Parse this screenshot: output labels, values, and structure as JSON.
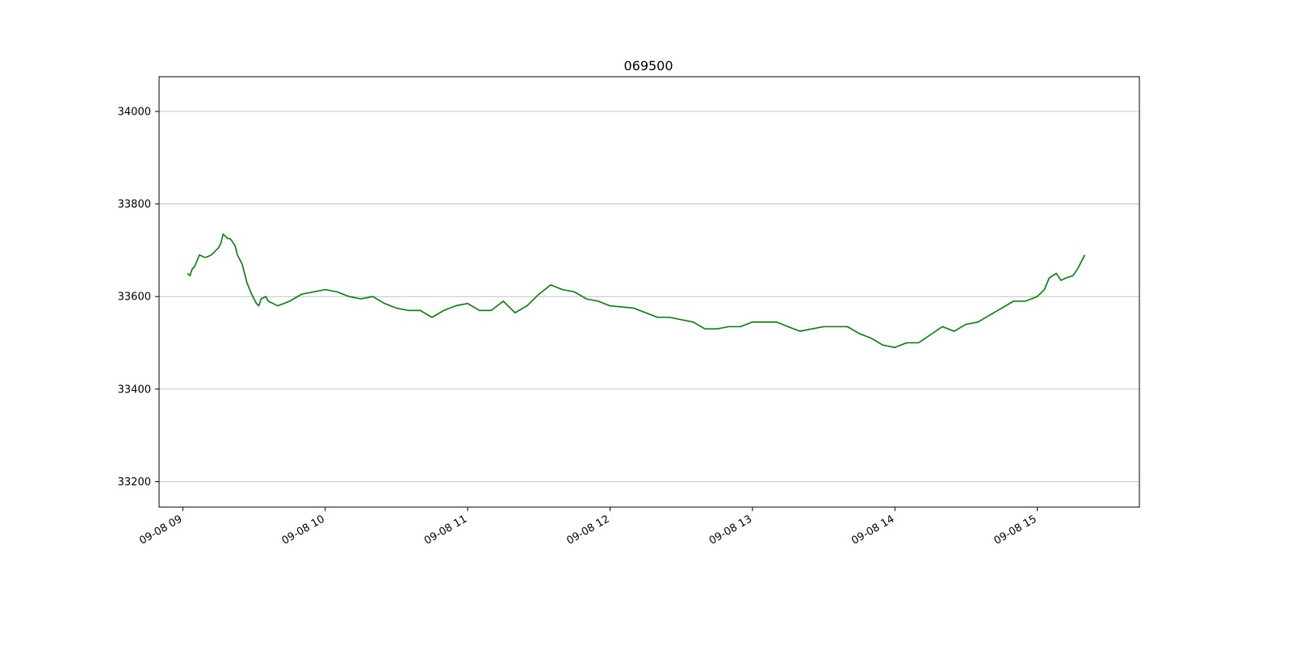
{
  "chart_data": {
    "type": "line",
    "title": "069500",
    "xlabel": "",
    "ylabel": "",
    "x_axis_type": "datetime",
    "xlim": [
      "2023-09-08 08:50",
      "2023-09-08 15:43"
    ],
    "ylim": [
      33145,
      34075
    ],
    "grid": "horizontal",
    "legend": "none",
    "line_color": "#008000",
    "x_ticks": [
      {
        "value": "2023-09-08 09:00",
        "label": "09-08 09"
      },
      {
        "value": "2023-09-08 10:00",
        "label": "09-08 10"
      },
      {
        "value": "2023-09-08 11:00",
        "label": "09-08 11"
      },
      {
        "value": "2023-09-08 12:00",
        "label": "09-08 12"
      },
      {
        "value": "2023-09-08 13:00",
        "label": "09-08 13"
      },
      {
        "value": "2023-09-08 14:00",
        "label": "09-08 14"
      },
      {
        "value": "2023-09-08 15:00",
        "label": "09-08 15"
      }
    ],
    "y_ticks": [
      {
        "value": 33200,
        "label": "33200"
      },
      {
        "value": 33400,
        "label": "33400"
      },
      {
        "value": 33600,
        "label": "33600"
      },
      {
        "value": 33800,
        "label": "33800"
      },
      {
        "value": 34000,
        "label": "34000"
      }
    ],
    "series": [
      {
        "x": [
          "09:02",
          "09:03",
          "09:04",
          "09:05",
          "09:07",
          "09:09",
          "09:10",
          "09:12",
          "09:14",
          "09:15",
          "09:16",
          "09:17",
          "09:18",
          "09:19",
          "09:20",
          "09:22",
          "09:23",
          "09:25",
          "09:27",
          "09:29",
          "09:30",
          "09:31",
          "09:32",
          "09:33",
          "09:35",
          "09:36",
          "09:38",
          "09:40",
          "09:45",
          "09:50",
          "09:55",
          "10:00",
          "10:05",
          "10:10",
          "10:15",
          "10:20",
          "10:25",
          "10:30",
          "10:35",
          "10:40",
          "10:45",
          "10:50",
          "10:55",
          "11:00",
          "11:05",
          "11:10",
          "11:15",
          "11:20",
          "11:25",
          "11:30",
          "11:35",
          "11:40",
          "11:45",
          "11:50",
          "11:55",
          "12:00",
          "12:10",
          "12:20",
          "12:25",
          "12:30",
          "12:35",
          "12:40",
          "12:45",
          "12:50",
          "12:55",
          "13:00",
          "13:10",
          "13:20",
          "13:30",
          "13:40",
          "13:45",
          "13:50",
          "13:55",
          "14:00",
          "14:05",
          "14:10",
          "14:20",
          "14:25",
          "14:30",
          "14:35",
          "14:40",
          "14:45",
          "14:50",
          "14:55",
          "15:00",
          "15:03",
          "15:05",
          "15:08",
          "15:10",
          "15:12",
          "15:15",
          "15:17",
          "15:20"
        ],
        "values": [
          33650,
          33645,
          33660,
          33665,
          33690,
          33685,
          33685,
          33690,
          33700,
          33705,
          33715,
          33735,
          33730,
          33725,
          33725,
          33710,
          33690,
          33670,
          33630,
          33605,
          33595,
          33585,
          33580,
          33595,
          33600,
          33590,
          33585,
          33580,
          33590,
          33605,
          33610,
          33615,
          33610,
          33600,
          33595,
          33600,
          33585,
          33575,
          33570,
          33570,
          33555,
          33570,
          33580,
          33585,
          33570,
          33570,
          33590,
          33565,
          33580,
          33605,
          33625,
          33615,
          33610,
          33595,
          33590,
          33580,
          33575,
          33555,
          33555,
          33550,
          33545,
          33530,
          33530,
          33535,
          33535,
          33545,
          33545,
          33525,
          33535,
          33535,
          33520,
          33510,
          33495,
          33490,
          33500,
          33500,
          33535,
          33525,
          33540,
          33545,
          33560,
          33575,
          33590,
          33590,
          33600,
          33615,
          33640,
          33650,
          33635,
          33640,
          33645,
          33660,
          33690
        ]
      }
    ]
  }
}
